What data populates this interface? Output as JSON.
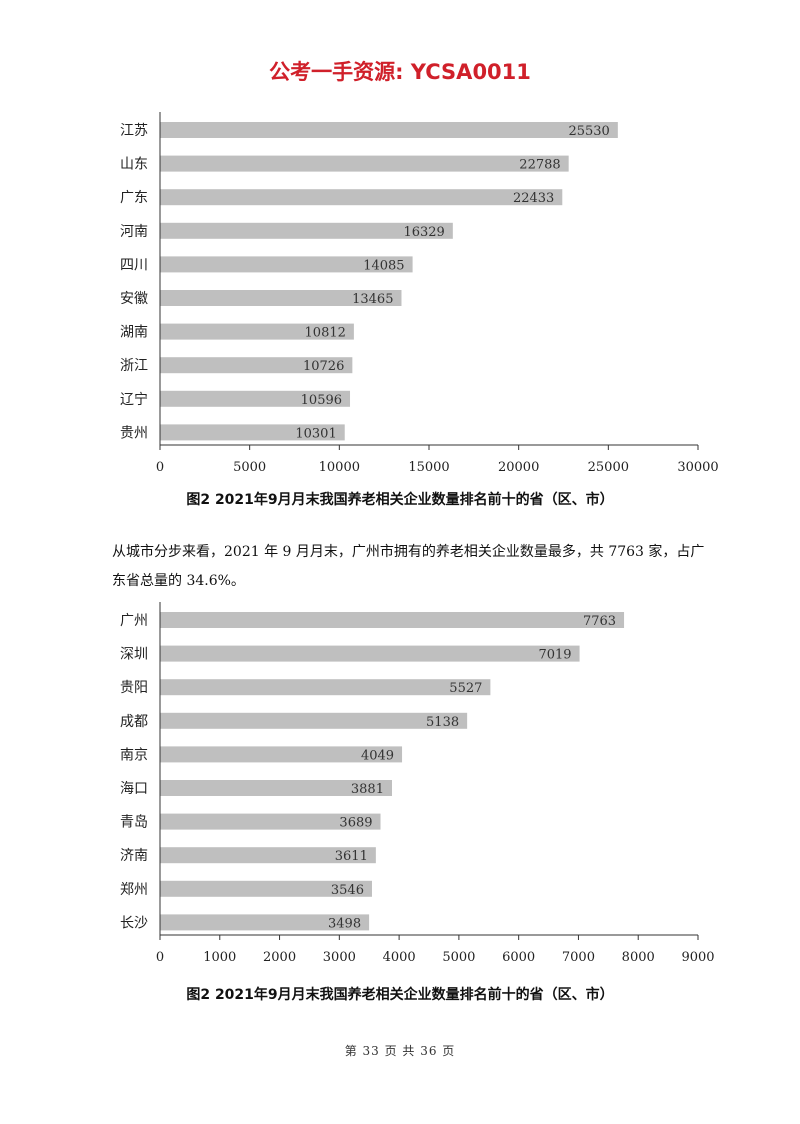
{
  "header": {
    "watermark": "公考一手资源: YCSA0011"
  },
  "chart_data": [
    {
      "type": "bar",
      "orientation": "horizontal",
      "categories": [
        "江苏",
        "山东",
        "广东",
        "河南",
        "四川",
        "安徽",
        "湖南",
        "浙江",
        "辽宁",
        "贵州"
      ],
      "values": [
        25530,
        22788,
        22433,
        16329,
        14085,
        13465,
        10812,
        10726,
        10596,
        10301
      ],
      "xlim": [
        0,
        30000
      ],
      "xticks": [
        "0",
        "5000",
        "10000",
        "15000",
        "20000",
        "25000",
        "30000"
      ],
      "bar_color": "#bfbfbf",
      "grid": false,
      "caption": "图2   2021年9月月末我国养老相关企业数量排名前十的省（区、市）"
    },
    {
      "type": "bar",
      "orientation": "horizontal",
      "categories": [
        "广州",
        "深圳",
        "贵阳",
        "成都",
        "南京",
        "海口",
        "青岛",
        "济南",
        "郑州",
        "长沙"
      ],
      "values": [
        7763,
        7019,
        5527,
        5138,
        4049,
        3881,
        3689,
        3611,
        3546,
        3498
      ],
      "xlim": [
        0,
        9000
      ],
      "xticks": [
        "0",
        "1000",
        "2000",
        "3000",
        "4000",
        "5000",
        "6000",
        "7000",
        "8000",
        "9000"
      ],
      "bar_color": "#bfbfbf",
      "grid": false,
      "caption": "图2   2021年9月月末我国养老相关企业数量排名前十的省（区、市）"
    }
  ],
  "body": {
    "paragraph": "从城市分步来看，2021 年 9 月月末，广州市拥有的养老相关企业数量最多，共 7763 家，占广东省总量的 34.6%。"
  },
  "footer": {
    "page_text": "第 33 页   共 36 页"
  }
}
